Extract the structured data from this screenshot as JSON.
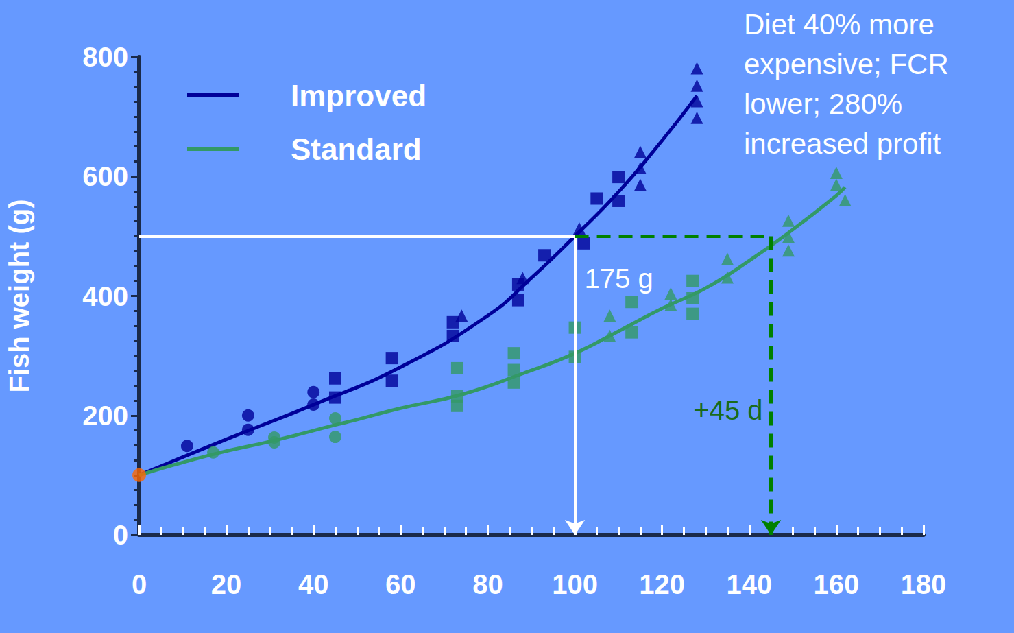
{
  "chart_data": {
    "type": "line",
    "x_label": null,
    "y_label": "Fish weight (g)",
    "note": "Diet 40% more expensive; FCR lower; 280% increased profit",
    "xlim": [
      0,
      180
    ],
    "xticks": [
      0,
      20,
      40,
      60,
      80,
      100,
      120,
      140,
      160,
      180
    ],
    "ylim": [
      0,
      800
    ],
    "yticks": [
      0,
      200,
      400,
      600,
      800
    ],
    "grid": false,
    "legend": "upper left",
    "series": [
      {
        "name": "Improved",
        "color": "#000099",
        "line_style": "solid",
        "x": [
          0,
          20,
          40,
          60,
          80,
          90,
          100,
          110,
          120,
          128
        ],
        "values": [
          100,
          160,
          218,
          281,
          367,
          430,
          500,
          574,
          660,
          735
        ],
        "points": [
          {
            "marker": "circle",
            "x": [
              11,
              25,
              25,
              40,
              40
            ],
            "values": [
              149,
              200,
              176,
              239,
              218
            ]
          },
          {
            "marker": "square",
            "x": [
              45,
              45,
              58,
              58,
              72,
              72,
              87,
              87,
              93,
              102,
              105,
              110,
              110
            ],
            "values": [
              262,
              230,
              296,
              258,
              356,
              333,
              419,
              393,
              468,
              488,
              563,
              599,
              559
            ]
          },
          {
            "marker": "triangle",
            "x": [
              74,
              88,
              101,
              115,
              115,
              115,
              128,
              128,
              128,
              128
            ],
            "values": [
              367,
              430,
              513,
              641,
              614,
              586,
              781,
              752,
              726,
              698
            ]
          }
        ]
      },
      {
        "name": "Standard",
        "color": "#339966",
        "line_style": "solid",
        "x": [
          0,
          17,
          31,
          45,
          50,
          60,
          74,
          88,
          100,
          110,
          120,
          130,
          140,
          150,
          160,
          162
        ],
        "values": [
          100,
          135,
          158,
          184,
          193,
          212,
          235,
          270,
          304,
          341,
          379,
          413,
          459,
          511,
          568,
          582
        ],
        "points": [
          {
            "marker": "circle",
            "x": [
              17,
              31,
              31,
              45,
              45
            ],
            "values": [
              138,
              163,
              155,
              195,
              164
            ]
          },
          {
            "marker": "square",
            "x": [
              73,
              73,
              73,
              86,
              86,
              86,
              100,
              100,
              113,
              113,
              127,
              127,
              127
            ],
            "values": [
              279,
              232,
              216,
              304,
              276,
              255,
              347,
              298,
              390,
              339,
              425,
              396,
              370
            ]
          },
          {
            "marker": "triangle",
            "x": [
              108,
              108,
              122,
              122,
              135,
              135,
              149,
              149,
              149,
              160,
              160,
              162
            ],
            "values": [
              367,
              333,
              404,
              385,
              462,
              431,
              526,
              499,
              476,
              606,
              586,
              560
            ]
          }
        ]
      }
    ],
    "start": {
      "x": 0,
      "y": 100,
      "color": "#ff6600"
    },
    "reference": {
      "weight": 500,
      "improved_day": 100,
      "standard_day": 145,
      "improved_color": "#ffffff",
      "standard_color": "#008000",
      "difference_label": "175 g",
      "delay_label": "+45 d"
    }
  }
}
